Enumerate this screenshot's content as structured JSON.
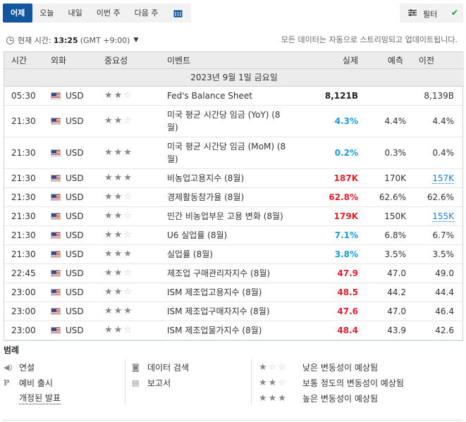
{
  "tabs": [
    "어제",
    "오늘",
    "내일",
    "이번 주",
    "다음 주"
  ],
  "calendar_icon": "calendar-icon",
  "filter": {
    "label": "필터",
    "icon": "filter-sliders-icon",
    "check_icon": "checkmark-icon"
  },
  "time": {
    "label": "현재 시간:",
    "value": "13:25",
    "tz": "(GMT +9:00)"
  },
  "stream_note": "모든 데이터는 자동으로 스트리밍되고 업데이트됩니다.",
  "columns": {
    "time": "시간",
    "currency": "외화",
    "importance": "중요성",
    "event": "이벤트",
    "actual": "실제",
    "forecast": "예측",
    "previous": "이전"
  },
  "date_header": "2023년 9월 1일 금요일",
  "rows": [
    {
      "time": "05:30",
      "currency": "USD",
      "stars": 2,
      "event": "Fed's Balance Sheet",
      "actual": "8,121B",
      "actual_color": "dark",
      "forecast": "",
      "previous": "8,139B",
      "previous_link": false
    },
    {
      "time": "21:30",
      "currency": "USD",
      "stars": 2,
      "event": "미국 평균 시간당 임금 (YoY) (8월)",
      "actual": "4.3%",
      "actual_color": "blue",
      "forecast": "4.4%",
      "previous": "4.4%",
      "previous_link": false
    },
    {
      "time": "21:30",
      "currency": "USD",
      "stars": 3,
      "event": "미국 평균 시간당 임금 (MoM) (8월)",
      "actual": "0.2%",
      "actual_color": "blue",
      "forecast": "0.3%",
      "previous": "0.4%",
      "previous_link": false
    },
    {
      "time": "21:30",
      "currency": "USD",
      "stars": 3,
      "event": "비농업고용지수 (8월)",
      "actual": "187K",
      "actual_color": "red",
      "forecast": "170K",
      "previous": "157K",
      "previous_link": true
    },
    {
      "time": "21:30",
      "currency": "USD",
      "stars": 2,
      "event": "경제활동참가율 (8월)",
      "actual": "62.8%",
      "actual_color": "red",
      "forecast": "62.6%",
      "previous": "62.6%",
      "previous_link": false
    },
    {
      "time": "21:30",
      "currency": "USD",
      "stars": 2,
      "event": "민간 비농업부문 고용 변화 (8월)",
      "actual": "179K",
      "actual_color": "red",
      "forecast": "150K",
      "previous": "155K",
      "previous_link": true
    },
    {
      "time": "21:30",
      "currency": "USD",
      "stars": 2,
      "event": "U6 실업률 (8월)",
      "actual": "7.1%",
      "actual_color": "blue",
      "forecast": "6.8%",
      "previous": "6.7%",
      "previous_link": false
    },
    {
      "time": "21:30",
      "currency": "USD",
      "stars": 3,
      "event": "실업률 (8월)",
      "actual": "3.8%",
      "actual_color": "blue",
      "forecast": "3.5%",
      "previous": "3.5%",
      "previous_link": false
    },
    {
      "time": "22:45",
      "currency": "USD",
      "stars": 2,
      "event": "제조업 구매관리자지수 (8월)",
      "actual": "47.9",
      "actual_color": "red",
      "forecast": "47.0",
      "previous": "49.0",
      "previous_link": false
    },
    {
      "time": "23:00",
      "currency": "USD",
      "stars": 2,
      "event": "ISM 제조업고용지수 (8월)",
      "actual": "48.5",
      "actual_color": "red",
      "forecast": "44.2",
      "previous": "44.4",
      "previous_link": false
    },
    {
      "time": "23:00",
      "currency": "USD",
      "stars": 3,
      "event": "ISM 제조업구매자지수 (8월)",
      "actual": "47.6",
      "actual_color": "red",
      "forecast": "47.0",
      "previous": "46.4",
      "previous_link": false
    },
    {
      "time": "23:00",
      "currency": "USD",
      "stars": 2,
      "event": "ISM 제조업물가지수 (8월)",
      "actual": "48.4",
      "actual_color": "red",
      "forecast": "43.9",
      "previous": "42.6",
      "previous_link": false
    }
  ],
  "legend": {
    "title": "범례",
    "speech": "연설",
    "preliminary": "예비 출시",
    "revised": "개정된 발표",
    "data_search": "데이터 검색",
    "report": "보고서",
    "low": "낮은 변동성이 예상됨",
    "medium": "보통 정도의 변동성이 예상됨",
    "high": "높은 변동성이 예상됨"
  },
  "colors": {
    "accent": "#1256a0",
    "positive": "#1a9bd7",
    "negative": "#e01e2b",
    "link": "#1a7ed8"
  }
}
